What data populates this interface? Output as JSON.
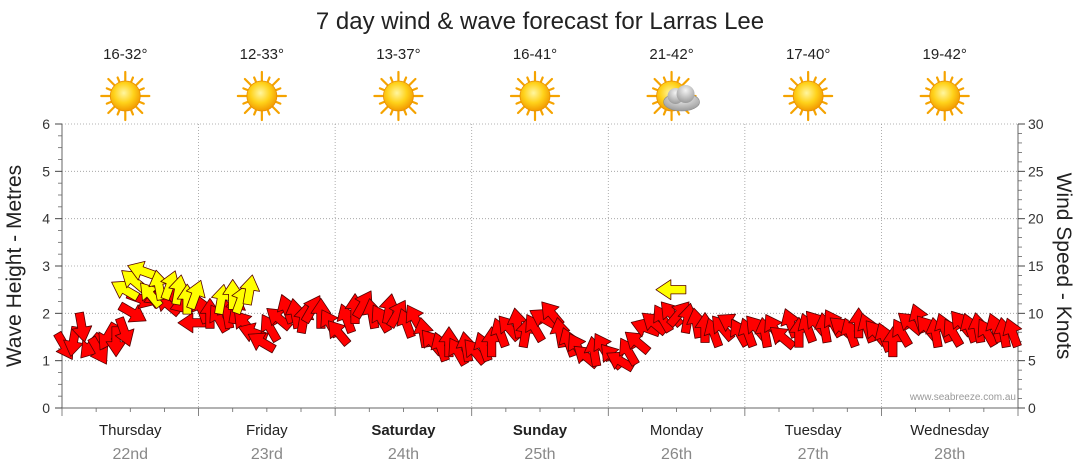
{
  "title": "7 day wind & wave forecast for Larras Lee",
  "credit": "www.seabreeze.com.au",
  "colors": {
    "wind_arrow": "#ff0000",
    "gust_arrow": "#ffff00",
    "arrow_outline": "#550000",
    "grid": "#9a9a9a"
  },
  "days": [
    {
      "name": "Thursday",
      "date": "22nd",
      "temp": "16-32°",
      "icon": "sun-icon",
      "bold": false
    },
    {
      "name": "Friday",
      "date": "23rd",
      "temp": "12-33°",
      "icon": "sun-icon",
      "bold": false
    },
    {
      "name": "Saturday",
      "date": "24th",
      "temp": "13-37°",
      "icon": "sun-icon",
      "bold": true
    },
    {
      "name": "Sunday",
      "date": "25th",
      "temp": "16-41°",
      "icon": "sun-icon",
      "bold": true
    },
    {
      "name": "Monday",
      "date": "26th",
      "temp": "21-42°",
      "icon": "partly-cloudy-icon",
      "bold": false
    },
    {
      "name": "Tuesday",
      "date": "27th",
      "temp": "17-40°",
      "icon": "sun-icon",
      "bold": false
    },
    {
      "name": "Wednesday",
      "date": "28th",
      "temp": "19-42°",
      "icon": "sun-icon",
      "bold": false
    }
  ],
  "chart_data": {
    "type": "line",
    "title": "7 day wind & wave forecast for Larras Lee",
    "ylabel_left": "Wave Height - Metres",
    "ylabel_right": "Wind Speed - Knots",
    "ylim_left": [
      0,
      6
    ],
    "ylim_right": [
      0,
      30
    ],
    "yticks_left": [
      "0",
      "1",
      "2",
      "3",
      "4",
      "5",
      "6"
    ],
    "yticks_right": [
      "0",
      "5",
      "10",
      "15",
      "20",
      "25",
      "30"
    ],
    "x_unit": "hours from start of Thursday",
    "x_range": [
      0,
      168
    ],
    "series": [
      {
        "name": "Wind speed (knots)",
        "marker": "red arrow showing wind direction",
        "points": [
          {
            "t": 0.5,
            "v": 6.5,
            "dir": 60
          },
          {
            "t": 2,
            "v": 7,
            "dir": 100
          },
          {
            "t": 3.5,
            "v": 8.5,
            "dir": 80
          },
          {
            "t": 5,
            "v": 6.5,
            "dir": 130
          },
          {
            "t": 6.5,
            "v": 6,
            "dir": 60
          },
          {
            "t": 8,
            "v": 7.5,
            "dir": 120
          },
          {
            "t": 9.5,
            "v": 7,
            "dir": 90
          },
          {
            "t": 11,
            "v": 8,
            "dir": 70
          },
          {
            "t": 12.5,
            "v": 10,
            "dir": 30
          },
          {
            "t": 14,
            "v": 11.5,
            "dir": 20
          },
          {
            "t": 15.5,
            "v": 12,
            "dir": 40
          },
          {
            "t": 17,
            "v": 11.5,
            "dir": 200
          },
          {
            "t": 18.5,
            "v": 11,
            "dir": 220
          },
          {
            "t": 20,
            "v": 12,
            "dir": 190
          },
          {
            "t": 21.5,
            "v": 11,
            "dir": 160
          },
          {
            "t": 23,
            "v": 9,
            "dir": 180
          },
          {
            "t": 24.5,
            "v": 10.5,
            "dir": 250
          },
          {
            "t": 26,
            "v": 10,
            "dir": 270
          },
          {
            "t": 27.5,
            "v": 9.5,
            "dir": 240
          },
          {
            "t": 29,
            "v": 10,
            "dir": 260
          },
          {
            "t": 30.5,
            "v": 10.5,
            "dir": 280
          },
          {
            "t": 32,
            "v": 9,
            "dir": 230
          },
          {
            "t": 33.5,
            "v": 8,
            "dir": 200
          },
          {
            "t": 35,
            "v": 7,
            "dir": 210
          },
          {
            "t": 36.5,
            "v": 8.5,
            "dir": 240
          },
          {
            "t": 38,
            "v": 9.5,
            "dir": 220
          },
          {
            "t": 39.5,
            "v": 10.5,
            "dir": 250
          },
          {
            "t": 41,
            "v": 10,
            "dir": 260
          },
          {
            "t": 42.5,
            "v": 9.5,
            "dir": 280
          },
          {
            "t": 44,
            "v": 10.5,
            "dir": 300
          },
          {
            "t": 45.5,
            "v": 10,
            "dir": 270
          },
          {
            "t": 47,
            "v": 9,
            "dir": 240
          },
          {
            "t": 48.5,
            "v": 8,
            "dir": 230
          },
          {
            "t": 50,
            "v": 9.5,
            "dir": 250
          },
          {
            "t": 51.5,
            "v": 10.5,
            "dir": 270
          },
          {
            "t": 53,
            "v": 11,
            "dir": 300
          },
          {
            "t": 54.5,
            "v": 10,
            "dir": 260
          },
          {
            "t": 56,
            "v": 9.5,
            "dir": 240
          },
          {
            "t": 57.5,
            "v": 10.5,
            "dir": 280
          },
          {
            "t": 59,
            "v": 10,
            "dir": 300
          },
          {
            "t": 60.5,
            "v": 9,
            "dir": 250
          },
          {
            "t": 62,
            "v": 9.5,
            "dir": 240
          },
          {
            "t": 63.5,
            "v": 8,
            "dir": 260
          },
          {
            "t": 65,
            "v": 7,
            "dir": 230
          },
          {
            "t": 66.5,
            "v": 6.5,
            "dir": 250
          },
          {
            "t": 68,
            "v": 7,
            "dir": 270
          },
          {
            "t": 69.5,
            "v": 6,
            "dir": 240
          },
          {
            "t": 71,
            "v": 6.5,
            "dir": 260
          },
          {
            "t": 72.5,
            "v": 6,
            "dir": 230
          },
          {
            "t": 74,
            "v": 6.5,
            "dir": 250
          },
          {
            "t": 75.5,
            "v": 7,
            "dir": 270
          },
          {
            "t": 77,
            "v": 8,
            "dir": 250
          },
          {
            "t": 78.5,
            "v": 8.5,
            "dir": 230
          },
          {
            "t": 80,
            "v": 9,
            "dir": 260
          },
          {
            "t": 81.5,
            "v": 8,
            "dir": 280
          },
          {
            "t": 83,
            "v": 8.5,
            "dir": 240
          },
          {
            "t": 84.5,
            "v": 9.5,
            "dir": 210
          },
          {
            "t": 86,
            "v": 10,
            "dir": 230
          },
          {
            "t": 87.5,
            "v": 8,
            "dir": 260
          },
          {
            "t": 89,
            "v": 7,
            "dir": 250
          },
          {
            "t": 90.5,
            "v": 6.5,
            "dir": 240
          },
          {
            "t": 92,
            "v": 5.5,
            "dir": 220
          },
          {
            "t": 93.5,
            "v": 6,
            "dir": 260
          },
          {
            "t": 95,
            "v": 6.5,
            "dir": 240
          },
          {
            "t": 96.5,
            "v": 5.5,
            "dir": 230
          },
          {
            "t": 98,
            "v": 5,
            "dir": 210
          },
          {
            "t": 99.5,
            "v": 6,
            "dir": 240
          },
          {
            "t": 101,
            "v": 7,
            "dir": 220
          },
          {
            "t": 102.5,
            "v": 8.5,
            "dir": 200
          },
          {
            "t": 104,
            "v": 9,
            "dir": 220
          },
          {
            "t": 105.5,
            "v": 9.5,
            "dir": 240
          },
          {
            "t": 107,
            "v": 10,
            "dir": 230
          },
          {
            "t": 108.5,
            "v": 10,
            "dir": 310
          },
          {
            "t": 110,
            "v": 9.5,
            "dir": 280
          },
          {
            "t": 111.5,
            "v": 9,
            "dir": 260
          },
          {
            "t": 113,
            "v": 8.5,
            "dir": 270
          },
          {
            "t": 114.5,
            "v": 8,
            "dir": 250
          },
          {
            "t": 116,
            "v": 8.5,
            "dir": 230
          },
          {
            "t": 117.5,
            "v": 9,
            "dir": 210
          },
          {
            "t": 119,
            "v": 8,
            "dir": 240
          },
          {
            "t": 120.5,
            "v": 8,
            "dir": 250
          },
          {
            "t": 122,
            "v": 8.5,
            "dir": 230
          },
          {
            "t": 123.5,
            "v": 8,
            "dir": 260
          },
          {
            "t": 125,
            "v": 8.5,
            "dir": 240
          },
          {
            "t": 126.5,
            "v": 7.5,
            "dir": 220
          },
          {
            "t": 128,
            "v": 9,
            "dir": 250
          },
          {
            "t": 129.5,
            "v": 8,
            "dir": 270
          },
          {
            "t": 131,
            "v": 8.5,
            "dir": 250
          },
          {
            "t": 132.5,
            "v": 9,
            "dir": 230
          },
          {
            "t": 134,
            "v": 8.5,
            "dir": 260
          },
          {
            "t": 135.5,
            "v": 9,
            "dir": 240
          },
          {
            "t": 137,
            "v": 8.5,
            "dir": 220
          },
          {
            "t": 138.5,
            "v": 8,
            "dir": 250
          },
          {
            "t": 140,
            "v": 9,
            "dir": 270
          },
          {
            "t": 141.5,
            "v": 8.5,
            "dir": 250
          },
          {
            "t": 143,
            "v": 8,
            "dir": 230
          },
          {
            "t": 144.5,
            "v": 7.5,
            "dir": 250
          },
          {
            "t": 146,
            "v": 7,
            "dir": 270
          },
          {
            "t": 147.5,
            "v": 8,
            "dir": 240
          },
          {
            "t": 149,
            "v": 9,
            "dir": 220
          },
          {
            "t": 150.5,
            "v": 9.5,
            "dir": 250
          },
          {
            "t": 152,
            "v": 8.5,
            "dir": 230
          },
          {
            "t": 153.5,
            "v": 8,
            "dir": 260
          },
          {
            "t": 155,
            "v": 8.5,
            "dir": 250
          },
          {
            "t": 156.5,
            "v": 8,
            "dir": 240
          },
          {
            "t": 158,
            "v": 9,
            "dir": 230
          },
          {
            "t": 159.5,
            "v": 8.5,
            "dir": 250
          },
          {
            "t": 161,
            "v": 8.5,
            "dir": 260
          },
          {
            "t": 162.5,
            "v": 8,
            "dir": 240
          },
          {
            "t": 164,
            "v": 8.5,
            "dir": 250
          },
          {
            "t": 165.5,
            "v": 8,
            "dir": 260
          },
          {
            "t": 167,
            "v": 8,
            "dir": 250
          }
        ]
      },
      {
        "name": "Wind gusts (knots)",
        "marker": "yellow arrow",
        "points": [
          {
            "t": 11,
            "v": 12.5,
            "dir": 210
          },
          {
            "t": 12.5,
            "v": 13.5,
            "dir": 220
          },
          {
            "t": 14,
            "v": 14.5,
            "dir": 200
          },
          {
            "t": 15.5,
            "v": 12,
            "dir": 230
          },
          {
            "t": 17,
            "v": 13,
            "dir": 260
          },
          {
            "t": 19,
            "v": 13,
            "dir": 290
          },
          {
            "t": 20.5,
            "v": 12.5,
            "dir": 280
          },
          {
            "t": 22,
            "v": 11.5,
            "dir": 270
          },
          {
            "t": 23.5,
            "v": 12,
            "dir": 290
          },
          {
            "t": 28,
            "v": 11.5,
            "dir": 280
          },
          {
            "t": 30,
            "v": 12,
            "dir": 270
          },
          {
            "t": 31.5,
            "v": 11.5,
            "dir": 290
          },
          {
            "t": 33,
            "v": 12.5,
            "dir": 280
          },
          {
            "t": 107,
            "v": 12.5,
            "dir": 180
          }
        ]
      }
    ],
    "day_labels": [
      "Thursday",
      "Friday",
      "Saturday",
      "Sunday",
      "Monday",
      "Tuesday",
      "Wednesday"
    ],
    "grid": true
  }
}
